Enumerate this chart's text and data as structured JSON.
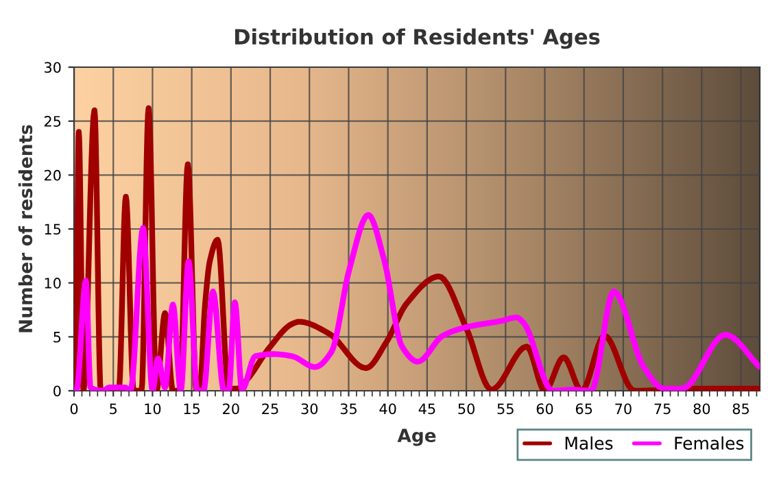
{
  "chart_data": {
    "type": "line",
    "title": "Distribution of Residents' Ages",
    "xlabel": "Age",
    "ylabel": "Number of residents",
    "xlim": [
      0,
      87.4
    ],
    "xticks": [
      0,
      5,
      10,
      15,
      20,
      25,
      30,
      35,
      40,
      45,
      50,
      55,
      60,
      65,
      70,
      75,
      80,
      85
    ],
    "ylim": [
      0,
      30
    ],
    "yticks": [
      0,
      5,
      10,
      15,
      20,
      25,
      30
    ],
    "grid": true,
    "legend": "bottom right",
    "marker": "none",
    "line_style": "solid",
    "series": [
      {
        "name": "Males",
        "color": "#a00000",
        "x": [
          0,
          0.2,
          0.6,
          1.2,
          2.6,
          3.4,
          5.7,
          6.6,
          7.6,
          8.6,
          9.5,
          10.5,
          11.6,
          12.6,
          13.5,
          14.5,
          15.6,
          16.0,
          16.7,
          17.3,
          18.3,
          19.7,
          20.8,
          22,
          24.9,
          27.8,
          28.7,
          32.5,
          37.2,
          39.8,
          42.4,
          46.5,
          50,
          53.2,
          57.7,
          60,
          62.4,
          64.7,
          67.6,
          71.4,
          80,
          87.4
        ],
        "values": [
          0,
          0,
          24,
          0,
          26,
          0,
          0,
          18,
          0,
          0,
          26.2,
          0,
          7.2,
          0,
          0,
          21,
          0,
          0,
          8,
          12,
          14,
          0.2,
          0.2,
          1,
          4,
          6.2,
          6.4,
          5.3,
          2.1,
          4.5,
          8.1,
          10.6,
          5.8,
          0.1,
          4.1,
          0,
          3.1,
          0,
          5.1,
          0,
          0.2,
          0.2
        ]
      },
      {
        "name": "Females",
        "color": "#ff00ff",
        "x": [
          0,
          0.3,
          1.5,
          2.1,
          3.7,
          4.5,
          6.5,
          7.2,
          8.8,
          10,
          10.7,
          11.6,
          12.6,
          13.6,
          14.6,
          15.7,
          16.5,
          17.7,
          19.1,
          19.7,
          20.5,
          21.4,
          23.1,
          25.5,
          27.8,
          30.7,
          32.8,
          35.1,
          37.5,
          39.5,
          41.8,
          43.8,
          47,
          50,
          54.6,
          56.4,
          57.3,
          61,
          63.6,
          65.9,
          68.8,
          72.6,
          75.2,
          77.5,
          83,
          87.4
        ],
        "values": [
          0,
          0,
          10.2,
          0.3,
          0,
          0.3,
          0.3,
          0,
          15.1,
          0,
          3,
          0.3,
          8,
          0,
          12,
          0,
          0,
          9.2,
          0,
          0,
          8.2,
          0.1,
          3.2,
          3.4,
          3.2,
          2.2,
          3.6,
          11.3,
          16.3,
          12.2,
          4.1,
          2.7,
          5.1,
          5.9,
          6.5,
          6.8,
          6.3,
          0,
          0.1,
          0,
          9.2,
          2.2,
          0.2,
          0.2,
          5.2,
          2.2
        ]
      }
    ]
  }
}
